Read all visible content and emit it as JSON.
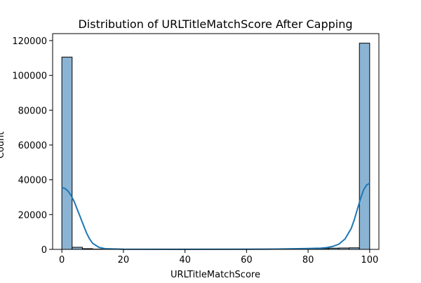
{
  "chart_data": {
    "type": "bar",
    "subtype": "histogram_with_kde",
    "title": "Distribution of URLTitleMatchScore After Capping",
    "xlabel": "URLTitleMatchScore",
    "ylabel": "Count",
    "xlim": [
      -3,
      103
    ],
    "ylim": [
      0,
      124000
    ],
    "xticks": [
      0,
      20,
      40,
      60,
      80,
      100
    ],
    "yticks": [
      0,
      20000,
      40000,
      60000,
      80000,
      100000,
      120000
    ],
    "bins": {
      "start": 0,
      "width": 3.3333,
      "counts": [
        110500,
        1200,
        400,
        150,
        100,
        80,
        60,
        50,
        40,
        40,
        40,
        40,
        40,
        40,
        40,
        40,
        40,
        50,
        60,
        70,
        80,
        100,
        150,
        200,
        300,
        500,
        700,
        800,
        900,
        118500
      ]
    },
    "kde": {
      "x": [
        0,
        1,
        2,
        3,
        4,
        5,
        6,
        7,
        8,
        9,
        10,
        12,
        14,
        20,
        40,
        60,
        70,
        80,
        84,
        86,
        88,
        90,
        92,
        94,
        95,
        96,
        97,
        98,
        99,
        100
      ],
      "y": [
        35500,
        35000,
        33500,
        31000,
        27500,
        23000,
        18500,
        14000,
        9500,
        6000,
        3500,
        1200,
        400,
        100,
        50,
        100,
        200,
        500,
        700,
        1000,
        1700,
        3000,
        6000,
        12000,
        17000,
        23000,
        29000,
        34000,
        37000,
        38000
      ]
    },
    "bar_fill": "#8bb4d4",
    "bar_edge": "#000000",
    "kde_color": "#1f77b4",
    "grid": false
  }
}
